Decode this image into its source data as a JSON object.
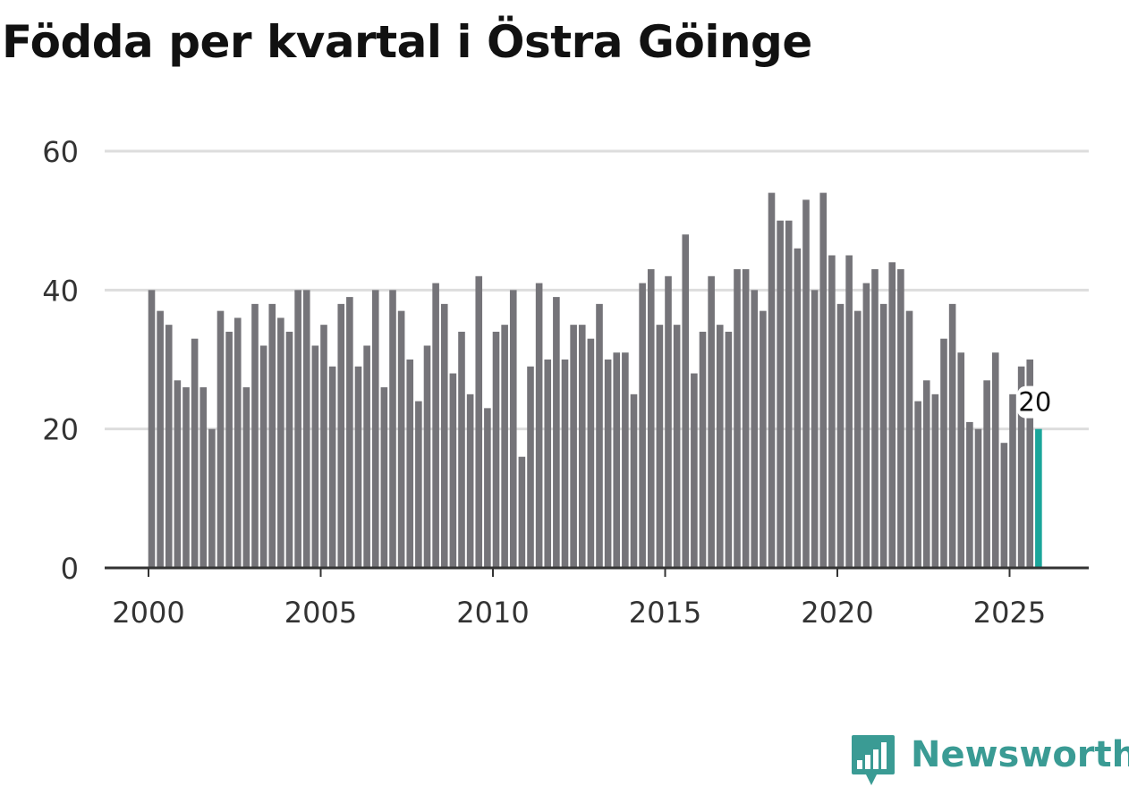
{
  "title": "Födda per kvartal i Östra Göinge",
  "brand": {
    "name": "Newsworthy",
    "icon": "bar-chart-speech-bubble-icon",
    "color": "#3a9b94"
  },
  "chart_data": {
    "type": "bar",
    "title": "Födda per kvartal i Östra Göinge",
    "xlabel": "",
    "ylabel": "",
    "ylim": [
      0,
      60
    ],
    "xlim": [
      1999.5,
      2027.3
    ],
    "yticks": [
      0,
      20,
      40,
      60
    ],
    "xticks": [
      2000,
      2005,
      2010,
      2015,
      2020,
      2025
    ],
    "grid": true,
    "colors": {
      "bar": "#757479",
      "highlight": "#1aa59a",
      "grid": "#dddddd",
      "axis": "#333333"
    },
    "start_quarter": "2000K1",
    "end_quarter": "2025K4",
    "values": [
      40,
      37,
      35,
      27,
      26,
      33,
      26,
      20,
      37,
      34,
      36,
      26,
      38,
      32,
      38,
      36,
      34,
      40,
      40,
      32,
      35,
      29,
      38,
      39,
      29,
      32,
      40,
      26,
      40,
      37,
      30,
      24,
      32,
      41,
      38,
      28,
      34,
      25,
      42,
      23,
      34,
      35,
      40,
      16,
      29,
      41,
      30,
      39,
      30,
      35,
      35,
      33,
      38,
      30,
      31,
      31,
      25,
      41,
      43,
      35,
      42,
      35,
      48,
      28,
      34,
      42,
      35,
      34,
      43,
      43,
      40,
      37,
      54,
      50,
      50,
      46,
      53,
      40,
      54,
      45,
      38,
      45,
      37,
      41,
      43,
      38,
      44,
      43,
      37,
      24,
      27,
      25,
      33,
      38,
      31,
      21,
      20,
      27,
      31,
      18,
      25,
      29,
      30,
      20
    ],
    "highlight": {
      "index": 103,
      "value": 20,
      "label": "20"
    }
  }
}
